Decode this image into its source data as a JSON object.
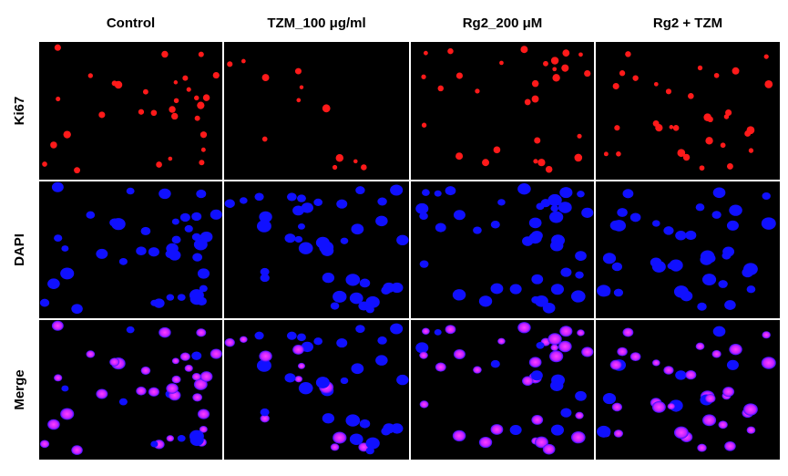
{
  "columns": [
    "Control",
    "TZM_100 μg/ml",
    "Rg2_200 μM",
    "Rg2 + TZM"
  ],
  "rows": [
    "Ki67",
    "DAPI",
    "Merge"
  ]
}
